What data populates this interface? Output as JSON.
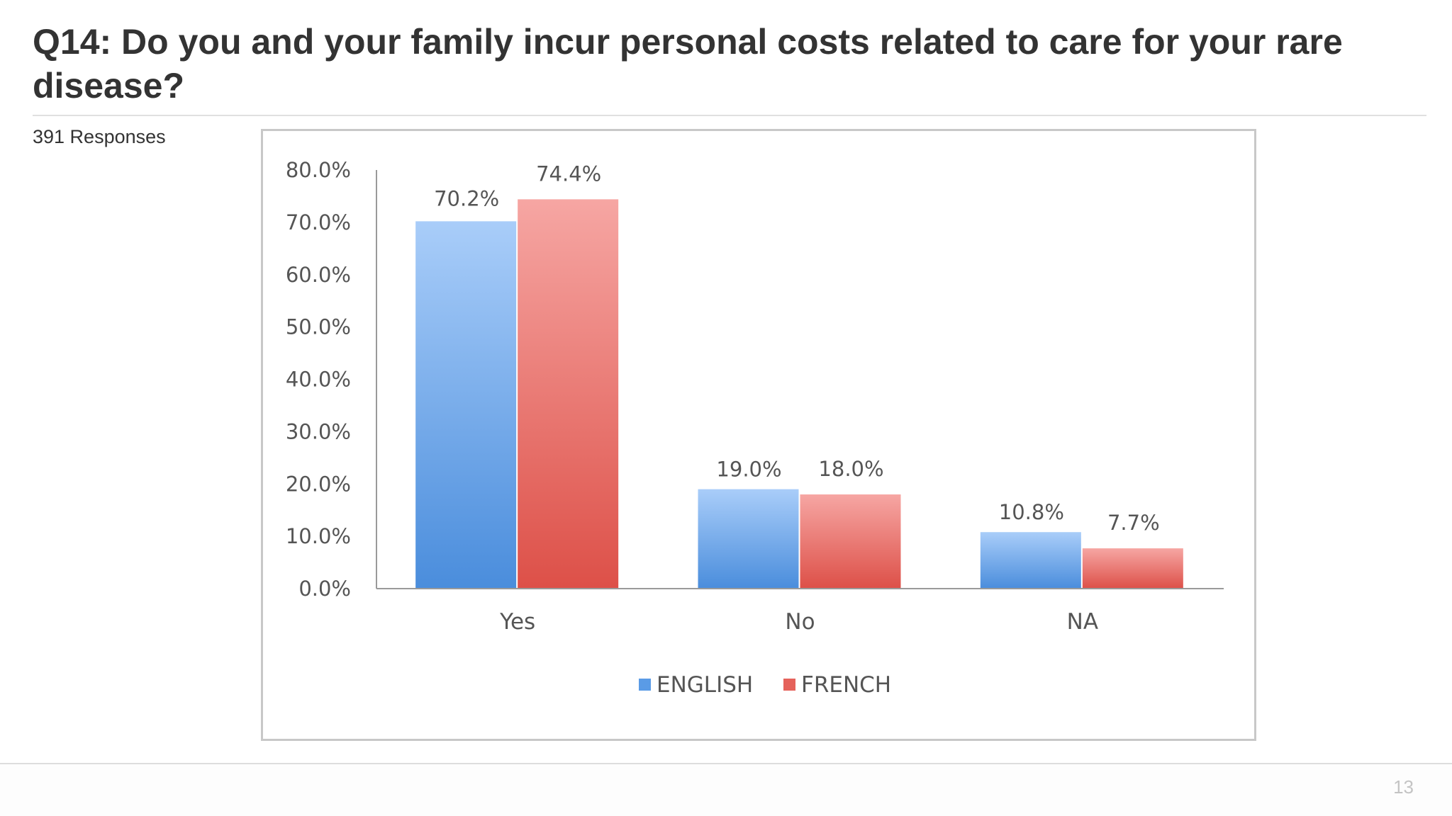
{
  "slide": {
    "title": "Q14: Do you and your family incur personal costs related to care for your rare disease?",
    "subtitle": "391 Responses",
    "page_number": "13"
  },
  "colors": {
    "english": "#5a9be6",
    "french": "#e5625b",
    "text": "#333333",
    "axis_text": "#555555"
  },
  "chart_data": {
    "type": "bar",
    "title": "",
    "xlabel": "",
    "ylabel": "",
    "categories": [
      "Yes",
      "No",
      "NA"
    ],
    "series": [
      {
        "name": "ENGLISH",
        "values": [
          70.2,
          19.0,
          10.8
        ],
        "labels": [
          "70.2%",
          "19.0%",
          "10.8%"
        ]
      },
      {
        "name": "FRENCH",
        "values": [
          74.4,
          18.0,
          7.7
        ],
        "labels": [
          "74.4%",
          "18.0%",
          "7.7%"
        ]
      }
    ],
    "ylim": [
      0,
      80
    ],
    "y_ticks": [
      "0.0%",
      "10.0%",
      "20.0%",
      "30.0%",
      "40.0%",
      "50.0%",
      "60.0%",
      "70.0%",
      "80.0%"
    ],
    "grid": false,
    "legend": "bottom-center"
  }
}
